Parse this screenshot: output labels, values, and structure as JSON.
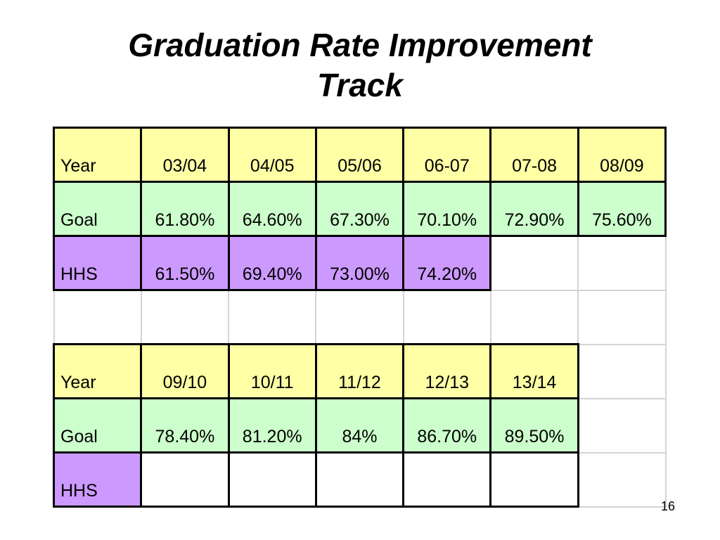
{
  "title": {
    "line1": "Graduation Rate Improvement",
    "line2": "Track"
  },
  "table": {
    "block1": {
      "year_label": "Year",
      "years": [
        "03/04",
        "04/05",
        "05/06",
        "06-07",
        "07-08",
        "08/09"
      ],
      "goal_label": "Goal",
      "goals": [
        "61.80%",
        "64.60%",
        "67.30%",
        "70.10%",
        "72.90%",
        "75.60%"
      ],
      "hhs_label": "HHS",
      "hhs": [
        "61.50%",
        "69.40%",
        "73.00%",
        "74.20%"
      ]
    },
    "block2": {
      "year_label": "Year",
      "years": [
        "09/10",
        "10/11",
        "11/12",
        "12/13",
        "13/14"
      ],
      "goal_label": "Goal",
      "goals": [
        "78.40%",
        "81.20%",
        "84%",
        "86.70%",
        "89.50%"
      ],
      "hhs_label": "HHS"
    }
  },
  "page_number": "16"
}
